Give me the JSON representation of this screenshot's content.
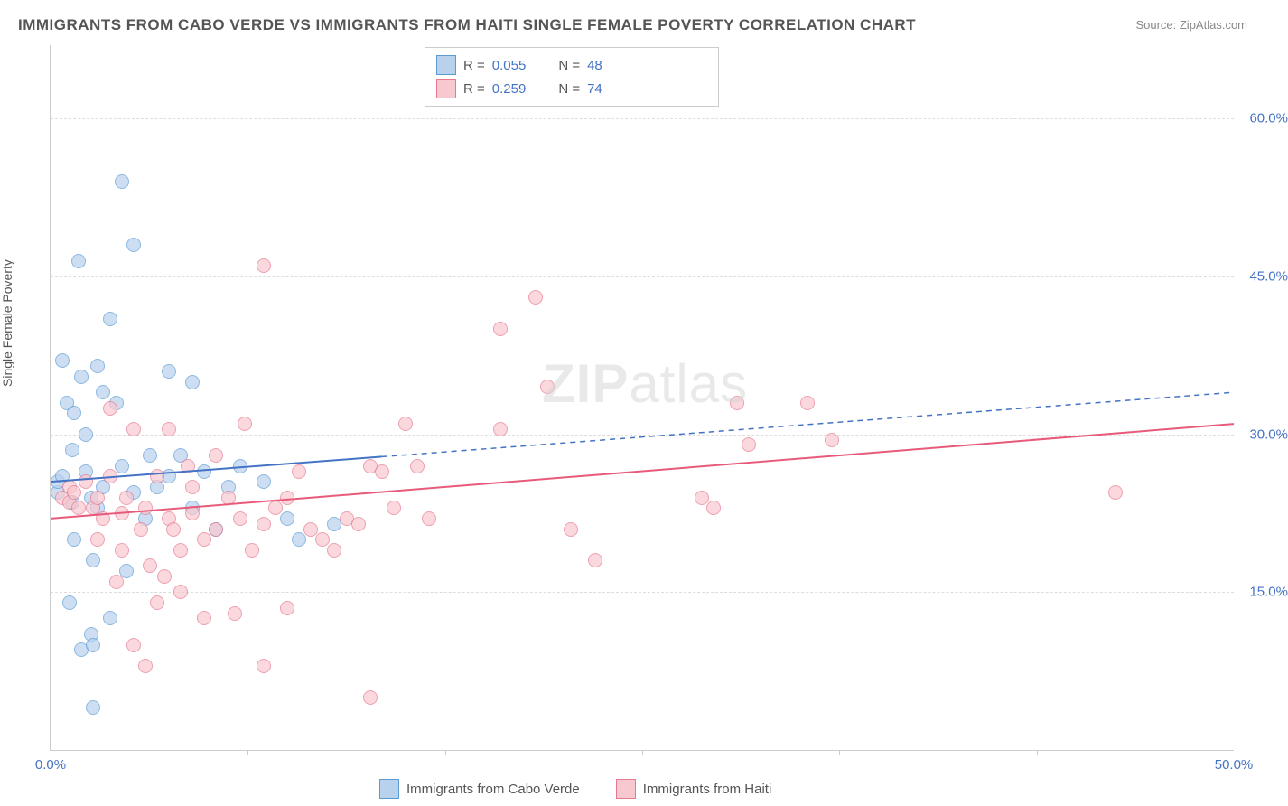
{
  "title": "IMMIGRANTS FROM CABO VERDE VS IMMIGRANTS FROM HAITI SINGLE FEMALE POVERTY CORRELATION CHART",
  "source": "Source: ZipAtlas.com",
  "ylabel": "Single Female Poverty",
  "watermark_bold": "ZIP",
  "watermark_rest": "atlas",
  "chart": {
    "type": "scatter",
    "background_color": "#ffffff",
    "grid_color": "#dddddd",
    "axis_color": "#cccccc",
    "x_range": [
      0,
      50
    ],
    "y_range": [
      0,
      67
    ],
    "y_ticks": [
      15,
      30,
      45,
      60
    ],
    "y_tick_labels": [
      "15.0%",
      "30.0%",
      "45.0%",
      "60.0%"
    ],
    "x_ticks": [
      0,
      50
    ],
    "x_tick_labels": [
      "0.0%",
      "50.0%"
    ],
    "x_minor_ticks": [
      8.33,
      16.67,
      25,
      33.33,
      41.67
    ],
    "marker_radius": 7,
    "series": [
      {
        "name": "Immigrants from Cabo Verde",
        "fill_color": "#b8d1ed",
        "stroke_color": "#5b9bd5",
        "R": "0.055",
        "N": "48",
        "trend": {
          "x1": 0,
          "y1": 25.5,
          "x2": 50,
          "y2": 34,
          "solid_until_x": 14,
          "line_color": "#4472c4",
          "line_width": 2
        },
        "points": [
          [
            0.3,
            24.5
          ],
          [
            0.3,
            25.5
          ],
          [
            0.5,
            26
          ],
          [
            0.5,
            37
          ],
          [
            0.7,
            33
          ],
          [
            0.8,
            14
          ],
          [
            0.9,
            23.5
          ],
          [
            0.9,
            28.5
          ],
          [
            1,
            20
          ],
          [
            1,
            32
          ],
          [
            1.2,
            46.5
          ],
          [
            1.3,
            35.5
          ],
          [
            1.3,
            9.5
          ],
          [
            1.5,
            26.5
          ],
          [
            1.5,
            30
          ],
          [
            1.7,
            24
          ],
          [
            1.7,
            11
          ],
          [
            1.8,
            18
          ],
          [
            1.8,
            10
          ],
          [
            2,
            36.5
          ],
          [
            2,
            23
          ],
          [
            2.2,
            34
          ],
          [
            2.2,
            25
          ],
          [
            2.5,
            41
          ],
          [
            2.5,
            12.5
          ],
          [
            2.8,
            33
          ],
          [
            3,
            27
          ],
          [
            3,
            54
          ],
          [
            3.2,
            17
          ],
          [
            3.5,
            48
          ],
          [
            3.5,
            24.5
          ],
          [
            4,
            22
          ],
          [
            4.2,
            28
          ],
          [
            4.5,
            25
          ],
          [
            5,
            36
          ],
          [
            5,
            26
          ],
          [
            5.5,
            28
          ],
          [
            6,
            35
          ],
          [
            6,
            23
          ],
          [
            6.5,
            26.5
          ],
          [
            7,
            21
          ],
          [
            7.5,
            25
          ],
          [
            8,
            27
          ],
          [
            9,
            25.5
          ],
          [
            10,
            22
          ],
          [
            10.5,
            20
          ],
          [
            12,
            21.5
          ],
          [
            1.8,
            4
          ]
        ]
      },
      {
        "name": "Immigrants from Haiti",
        "fill_color": "#f8c8d0",
        "stroke_color": "#e87890",
        "R": "0.259",
        "N": "74",
        "trend": {
          "x1": 0,
          "y1": 22,
          "x2": 50,
          "y2": 31,
          "solid_until_x": 50,
          "line_color": "#e85a7a",
          "line_width": 2
        },
        "points": [
          [
            0.5,
            24
          ],
          [
            0.8,
            25
          ],
          [
            0.8,
            23.5
          ],
          [
            1,
            24.5
          ],
          [
            1.2,
            23
          ],
          [
            1.5,
            25.5
          ],
          [
            1.8,
            23
          ],
          [
            2,
            24
          ],
          [
            2,
            20
          ],
          [
            2.2,
            22
          ],
          [
            2.5,
            32.5
          ],
          [
            2.5,
            26
          ],
          [
            2.8,
            16
          ],
          [
            3,
            22.5
          ],
          [
            3,
            19
          ],
          [
            3.2,
            24
          ],
          [
            3.5,
            30.5
          ],
          [
            3.8,
            21
          ],
          [
            4,
            23
          ],
          [
            4,
            8
          ],
          [
            4.2,
            17.5
          ],
          [
            4.5,
            26
          ],
          [
            4.5,
            14
          ],
          [
            5,
            30.5
          ],
          [
            5,
            22
          ],
          [
            5.2,
            21
          ],
          [
            5.5,
            19
          ],
          [
            5.8,
            27
          ],
          [
            6,
            22.5
          ],
          [
            6,
            25
          ],
          [
            6.5,
            20
          ],
          [
            7,
            21
          ],
          [
            7,
            28
          ],
          [
            7.5,
            24
          ],
          [
            7.8,
            13
          ],
          [
            8,
            22
          ],
          [
            8.2,
            31
          ],
          [
            8.5,
            19
          ],
          [
            9,
            21.5
          ],
          [
            9,
            46
          ],
          [
            9.5,
            23
          ],
          [
            10,
            24
          ],
          [
            10,
            13.5
          ],
          [
            10.5,
            26.5
          ],
          [
            11,
            21
          ],
          [
            11.5,
            20
          ],
          [
            12,
            19
          ],
          [
            12.5,
            22
          ],
          [
            13,
            21.5
          ],
          [
            13.5,
            27
          ],
          [
            14,
            26.5
          ],
          [
            14.5,
            23
          ],
          [
            15,
            31
          ],
          [
            15.5,
            27
          ],
          [
            16,
            22
          ],
          [
            13.5,
            5
          ],
          [
            19,
            30.5
          ],
          [
            20.5,
            43
          ],
          [
            21,
            34.5
          ],
          [
            19,
            40
          ],
          [
            22,
            21
          ],
          [
            23,
            18
          ],
          [
            27.5,
            24
          ],
          [
            28,
            23
          ],
          [
            29,
            33
          ],
          [
            29.5,
            29
          ],
          [
            32,
            33
          ],
          [
            33,
            29.5
          ],
          [
            45,
            24.5
          ],
          [
            5.5,
            15
          ],
          [
            6.5,
            12.5
          ],
          [
            9,
            8
          ],
          [
            3.5,
            10
          ],
          [
            4.8,
            16.5
          ]
        ]
      }
    ]
  },
  "legend_top": {
    "rows": [
      {
        "swatch_fill": "#b8d1ed",
        "swatch_stroke": "#5b9bd5",
        "r_label": "R =",
        "r_val": "0.055",
        "n_label": "N =",
        "n_val": "48"
      },
      {
        "swatch_fill": "#f8c8d0",
        "swatch_stroke": "#e87890",
        "r_label": "R =",
        "r_val": "0.259",
        "n_label": "N =",
        "n_val": "74"
      }
    ]
  },
  "legend_bottom": {
    "items": [
      {
        "swatch_fill": "#b8d1ed",
        "swatch_stroke": "#5b9bd5",
        "label": "Immigrants from Cabo Verde"
      },
      {
        "swatch_fill": "#f8c8d0",
        "swatch_stroke": "#e87890",
        "label": "Immigrants from Haiti"
      }
    ]
  }
}
